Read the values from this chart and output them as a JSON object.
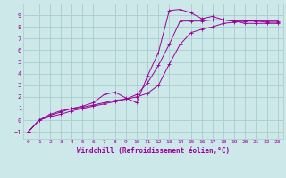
{
  "bg_color": "#cce8e8",
  "grid_color": "#aacccc",
  "line_color": "#990099",
  "marker": "+",
  "xlabel": "Windchill (Refroidissement éolien,°C)",
  "xlabel_color": "#990099",
  "xlim": [
    -0.5,
    23.5
  ],
  "ylim": [
    -1.6,
    10.0
  ],
  "xticks": [
    0,
    1,
    2,
    3,
    4,
    5,
    6,
    7,
    8,
    9,
    10,
    11,
    12,
    13,
    14,
    15,
    16,
    17,
    18,
    19,
    20,
    21,
    22,
    23
  ],
  "yticks": [
    -1,
    0,
    1,
    2,
    3,
    4,
    5,
    6,
    7,
    8,
    9
  ],
  "curve1_x": [
    0,
    1,
    2,
    3,
    4,
    5,
    6,
    7,
    8,
    9,
    10,
    11,
    12,
    13,
    14,
    15,
    16,
    17,
    18,
    19,
    20,
    21,
    22,
    23
  ],
  "curve1_y": [
    -1,
    0,
    0.4,
    0.7,
    1.0,
    1.1,
    1.3,
    1.5,
    1.7,
    1.8,
    2.0,
    2.3,
    3.0,
    4.8,
    6.5,
    7.5,
    7.8,
    8.0,
    8.3,
    8.4,
    8.5,
    8.5,
    8.5,
    8.5
  ],
  "curve2_x": [
    0,
    1,
    2,
    3,
    4,
    5,
    6,
    7,
    8,
    9,
    10,
    11,
    12,
    13,
    14,
    15,
    16,
    17,
    18,
    19,
    20,
    21,
    22,
    23
  ],
  "curve2_y": [
    -1,
    0,
    0.5,
    0.8,
    1.0,
    1.2,
    1.5,
    2.2,
    2.4,
    1.9,
    1.5,
    3.8,
    5.8,
    9.4,
    9.5,
    9.2,
    8.7,
    8.9,
    8.6,
    8.5,
    8.5,
    8.5,
    8.4,
    8.4
  ],
  "curve3_x": [
    0,
    1,
    2,
    3,
    4,
    5,
    6,
    7,
    8,
    9,
    10,
    11,
    12,
    13,
    14,
    15,
    16,
    17,
    18,
    19,
    20,
    21,
    22,
    23
  ],
  "curve3_y": [
    -1,
    0,
    0.3,
    0.5,
    0.8,
    1.0,
    1.2,
    1.4,
    1.6,
    1.8,
    2.2,
    3.2,
    4.7,
    6.5,
    8.5,
    8.5,
    8.5,
    8.6,
    8.6,
    8.5,
    8.3,
    8.3,
    8.3,
    8.3
  ]
}
